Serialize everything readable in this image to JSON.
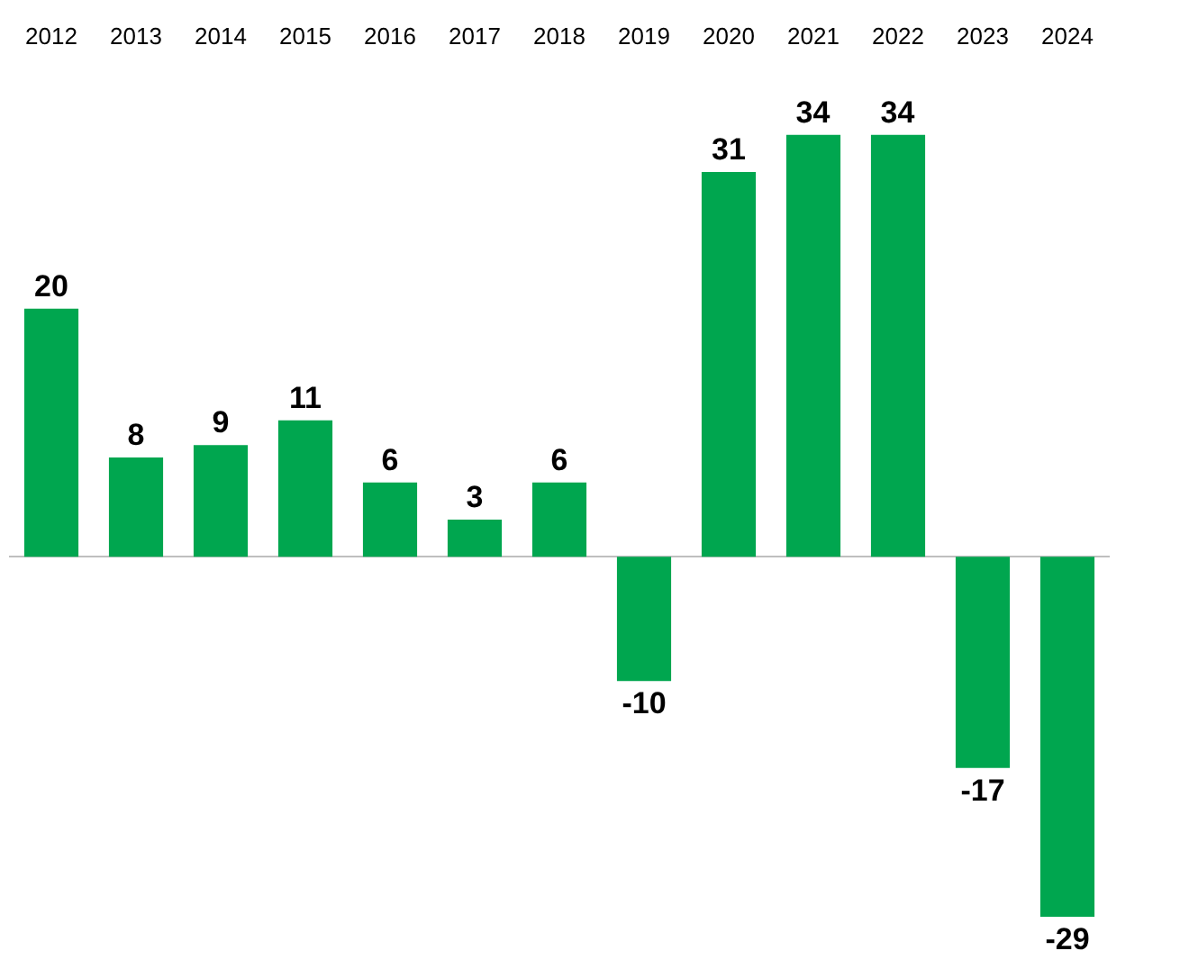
{
  "chart_data": {
    "type": "bar",
    "categories": [
      "2012",
      "2013",
      "2014",
      "2015",
      "2016",
      "2017",
      "2018",
      "2019",
      "2020",
      "2021",
      "2022",
      "2023",
      "2024"
    ],
    "values": [
      20,
      8,
      9,
      11,
      6,
      3,
      6,
      -10,
      31,
      34,
      34,
      -17,
      -29
    ],
    "color": "#00a64f",
    "data_labels": true
  }
}
